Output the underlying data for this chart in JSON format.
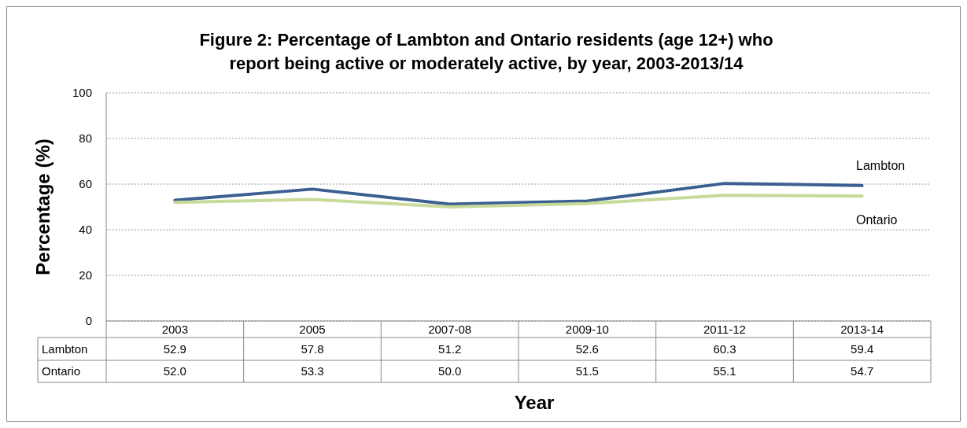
{
  "chart_data": {
    "type": "line",
    "title": "Figure 2: Percentage of Lambton and Ontario residents (age 12+) who report being active or moderately active, by year, 2003-2013/14",
    "xlabel": "Year",
    "ylabel": "Percentage (%)",
    "categories": [
      "2003",
      "2005",
      "2007-08",
      "2009-10",
      "2011-12",
      "2013-14"
    ],
    "series": [
      {
        "name": "Lambton",
        "color": "#3c5f91",
        "values": [
          52.9,
          57.8,
          51.2,
          52.6,
          60.3,
          59.4
        ],
        "value_labels": [
          "52.9",
          "57.8",
          "51.2",
          "52.6",
          "60.3",
          "59.4"
        ]
      },
      {
        "name": "Ontario",
        "color": "#c8da9a",
        "values": [
          52.0,
          53.3,
          50.0,
          51.5,
          55.1,
          54.7
        ],
        "value_labels": [
          "52.0",
          "53.3",
          "50.0",
          "51.5",
          "55.1",
          "54.7"
        ]
      }
    ],
    "ylim": [
      0,
      100
    ],
    "yticks": [
      0,
      20,
      40,
      60,
      80,
      100
    ],
    "grid": "y",
    "marker": "none",
    "line_style": "solid"
  }
}
